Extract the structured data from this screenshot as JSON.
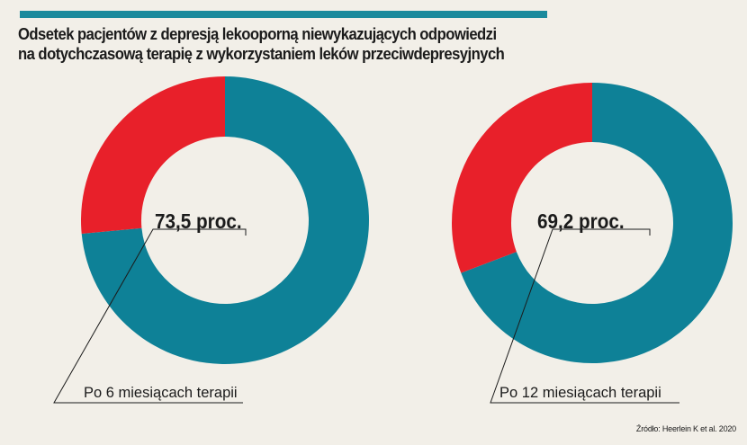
{
  "title_lines": [
    "Odsetek pacjentów z depresją lekooporną niewykazujących odpowiedzi",
    "na dotychczasową terapię z wykorzystaniem leków przeciwdepresyjnych"
  ],
  "source": "Źródło: Heerlein K et al. 2020",
  "colors": {
    "accent_bar": "#1b8a9c",
    "main": "#0e8197",
    "other": "#e8202a",
    "background": "#f2efe8",
    "text": "#1b1b1b"
  },
  "chart_data": [
    {
      "type": "pie",
      "variant": "donut",
      "value_percent": 73.5,
      "value_label": "73,5 proc.",
      "category_label": "Po 6 miesiącach terapii"
    },
    {
      "type": "pie",
      "variant": "donut",
      "value_percent": 69.2,
      "value_label": "69,2 proc.",
      "category_label": "Po 12 miesiącach terapii"
    }
  ]
}
